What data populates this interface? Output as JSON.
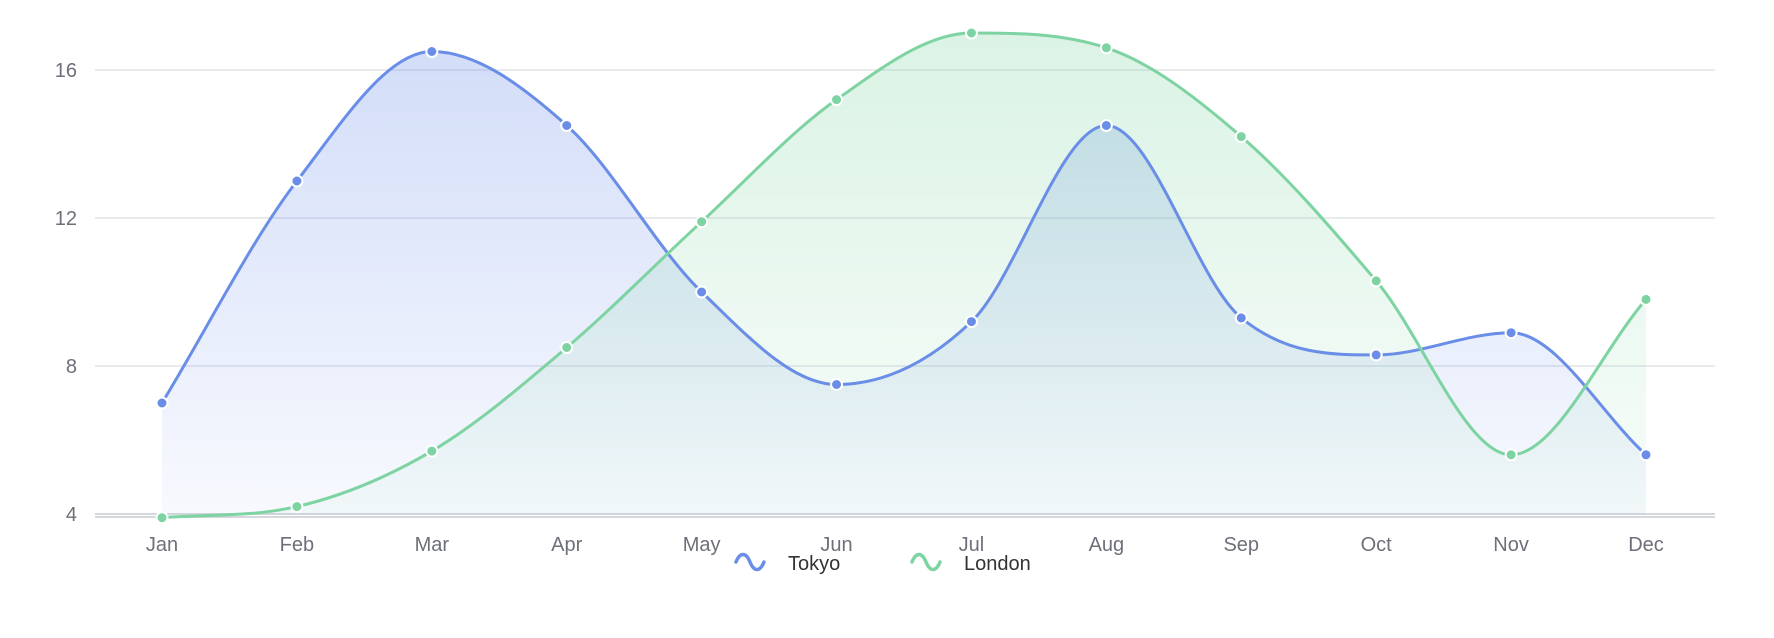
{
  "chart_data": {
    "type": "area",
    "categories": [
      "Jan",
      "Feb",
      "Mar",
      "Apr",
      "May",
      "Jun",
      "Jul",
      "Aug",
      "Sep",
      "Oct",
      "Nov",
      "Dec"
    ],
    "series": [
      {
        "name": "Tokyo",
        "color": "#6a8ee8",
        "values": [
          7.0,
          13.0,
          16.5,
          14.5,
          10.0,
          7.5,
          9.2,
          14.5,
          9.3,
          8.3,
          8.9,
          5.6
        ]
      },
      {
        "name": "London",
        "color": "#7dd3a1",
        "values": [
          3.9,
          4.2,
          5.7,
          8.5,
          11.9,
          15.2,
          17.0,
          16.6,
          14.2,
          10.3,
          5.6,
          9.8
        ]
      }
    ],
    "y_ticks": [
      "4",
      "8",
      "12",
      "16"
    ],
    "ylim": [
      4,
      17
    ],
    "xlabel": "",
    "ylabel": "",
    "grid": true,
    "legend_position": "bottom-center",
    "smooth": true
  }
}
